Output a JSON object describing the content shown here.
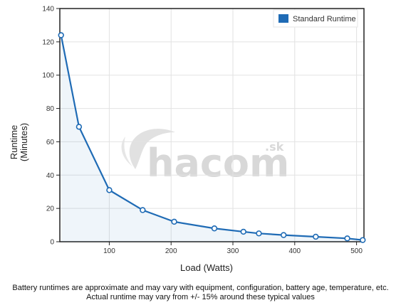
{
  "chart_data": {
    "type": "line",
    "xlabel": "Load (Watts)",
    "ylabel_lines": [
      "Runtime",
      "(Minutes)"
    ],
    "xlim": [
      20,
      512
    ],
    "ylim": [
      0,
      140
    ],
    "x_ticks": [
      100,
      200,
      300,
      400,
      500
    ],
    "x_tick_labels": [
      "100",
      "200",
      "300",
      "400",
      "500"
    ],
    "y_ticks": [
      0,
      20,
      40,
      60,
      80,
      100,
      120,
      140
    ],
    "y_tick_labels": [
      "0",
      "20",
      "40",
      "60",
      "80",
      "100",
      "120",
      "140"
    ],
    "grid": true,
    "legend_position": "top-right",
    "series": [
      {
        "name": "Standard Runtime",
        "color": "#1f6bb5",
        "x": [
          22,
          51,
          100,
          154,
          205,
          270,
          317,
          342,
          382,
          434,
          485,
          510
        ],
        "y": [
          124,
          69,
          31,
          19,
          12,
          8,
          6,
          5,
          4,
          3,
          2,
          1
        ]
      }
    ]
  },
  "watermark": {
    "text": "hacom",
    "suffix": ".sk"
  },
  "notes": {
    "line1": "Battery runtimes are approximate and may vary with equipment, configuration, battery age, temperature, etc.",
    "line2": "Actual runtime may vary from +/- 15% around these typical values"
  }
}
